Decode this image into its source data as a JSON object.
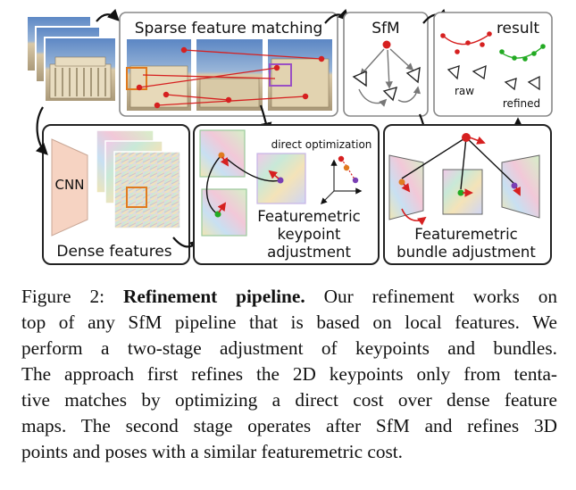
{
  "figure": {
    "labels": {
      "sparse_matching": "Sparse feature matching",
      "sfm": "SfM",
      "result": "result",
      "raw": "raw",
      "refined": "refined",
      "cnn": "CNN",
      "dense_features": "Dense features",
      "direct_optimization": "direct optimization",
      "keypoint_adj_1": "Featuremetric",
      "keypoint_adj_2": "keypoint",
      "keypoint_adj_3": "adjustment",
      "bundle_adj_1": "Featuremetric",
      "bundle_adj_2": "bundle adjustment"
    },
    "colors": {
      "box_stroke": "#222222",
      "box_stroke_light": "#888888",
      "match_red": "#d62020",
      "match_orange": "#e07a1f",
      "result_green": "#22aa22",
      "cnn_fill": "#f6d3c2"
    }
  },
  "caption": {
    "label": "Figure 2:",
    "title": "Refinement pipeline.",
    "lines": [
      "Our refinement works on",
      "top of any SfM pipeline that is based on local features. We",
      "perform a two-stage adjustment of keypoints and bundles.",
      "The approach first refines the 2D keypoints only from tenta-",
      "tive matches by optimizing a direct cost over dense feature",
      "maps. The second stage operates after SfM and refines 3D",
      "points and poses with a similar featuremetric cost."
    ]
  }
}
